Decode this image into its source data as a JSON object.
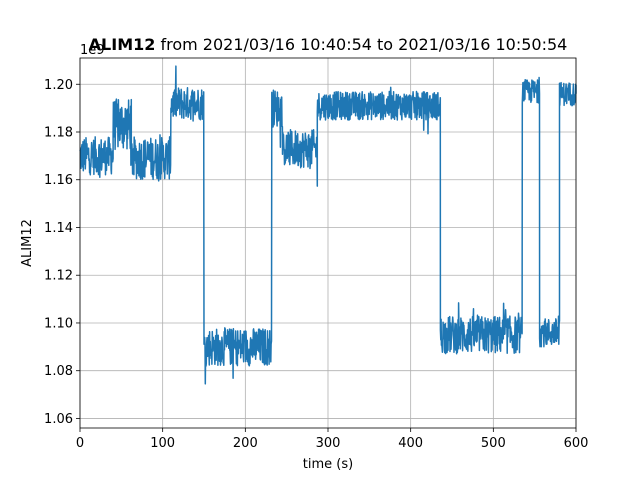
{
  "chart_data": {
    "type": "line",
    "title_bold": "ALIM12",
    "title_rest": " from 2021/03/16 10:40:54 to 2021/03/16 10:50:54",
    "xlabel": "time (s)",
    "ylabel": "ALIM12",
    "offset_text": "1e9",
    "xlim": [
      0,
      600
    ],
    "ylim": [
      1.056,
      1.211
    ],
    "xticks": [
      0,
      100,
      200,
      300,
      400,
      500,
      600
    ],
    "xtick_labels": [
      "0",
      "100",
      "200",
      "300",
      "400",
      "500",
      "600"
    ],
    "yticks": [
      1.06,
      1.08,
      1.1,
      1.12,
      1.14,
      1.16,
      1.18,
      1.2
    ],
    "ytick_labels": [
      "1.06",
      "1.08",
      "1.10",
      "1.12",
      "1.14",
      "1.16",
      "1.18",
      "1.20"
    ],
    "grid": true,
    "line_color": "#1f77b4",
    "series": [
      {
        "segments": [
          {
            "x0": 0,
            "x1": 40,
            "mean": 1.17,
            "amp": 0.008
          },
          {
            "x0": 40,
            "x1": 62,
            "mean": 1.183,
            "amp": 0.011
          },
          {
            "x0": 62,
            "x1": 110,
            "mean": 1.169,
            "amp": 0.009
          },
          {
            "x0": 110,
            "x1": 150,
            "mean": 1.192,
            "amp": 0.007
          },
          {
            "x0": 150,
            "x1": 232,
            "mean": 1.09,
            "amp": 0.008
          },
          {
            "x0": 232,
            "x1": 245,
            "mean": 1.19,
            "amp": 0.008
          },
          {
            "x0": 245,
            "x1": 287,
            "mean": 1.173,
            "amp": 0.008
          },
          {
            "x0": 287,
            "x1": 436,
            "mean": 1.191,
            "amp": 0.006
          },
          {
            "x0": 436,
            "x1": 535,
            "mean": 1.095,
            "amp": 0.008
          },
          {
            "x0": 535,
            "x1": 556,
            "mean": 1.197,
            "amp": 0.005
          },
          {
            "x0": 556,
            "x1": 580,
            "mean": 1.096,
            "amp": 0.006
          },
          {
            "x0": 580,
            "x1": 600,
            "mean": 1.196,
            "amp": 0.005
          }
        ]
      }
    ]
  }
}
